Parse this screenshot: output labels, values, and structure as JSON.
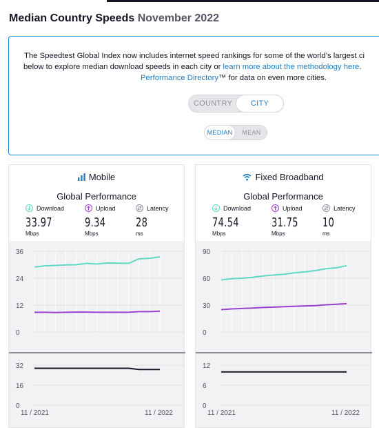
{
  "page": {
    "title": "Median Country Speeds",
    "month": "November 2022"
  },
  "info": {
    "line1": "The Speedtest Global Index now includes internet speed rankings for some of the world’s largest ci",
    "line2_pre": "below to explore median download speeds in each city or ",
    "line2_link": "learn more about the methodology here",
    "line2_post": ". ",
    "line3_link": "Performance Directory",
    "line3_post": "™ for data on even more cities."
  },
  "toggles": {
    "geo": {
      "options": [
        "COUNTRY",
        "CITY"
      ],
      "selected": "CITY"
    },
    "stat": {
      "options": [
        "MEDIAN",
        "MEAN"
      ],
      "selected": "MEDIAN"
    }
  },
  "colors": {
    "download": "#5fd9c3",
    "upload": "#9b3fcf",
    "latency": "#141526",
    "accent": "#1f7fc0",
    "border": "#1a8ed8"
  },
  "cards": [
    {
      "key": "mobile",
      "title": "Mobile",
      "icon": "signal-bars-icon",
      "subtitle": "Global Performance",
      "metrics": [
        {
          "label": "Download",
          "value": "33.97",
          "unit": "Mbps"
        },
        {
          "label": "Upload",
          "value": "9.34",
          "unit": "Mbps"
        },
        {
          "label": "Latency",
          "value": "28",
          "unit": "ms"
        }
      ],
      "chart_data": {
        "type": "line",
        "x": [
          "11/2021",
          "12/2021",
          "1/2022",
          "2/2022",
          "3/2022",
          "4/2022",
          "5/2022",
          "6/2022",
          "7/2022",
          "8/2022",
          "9/2022",
          "10/2022",
          "11/2022"
        ],
        "x_tick_labels": [
          "11 / 2021",
          "11 / 2022"
        ],
        "speed": {
          "ylim": [
            0,
            36
          ],
          "yticks": [
            "36",
            "24",
            "12",
            "0"
          ],
          "series": [
            {
              "values": [
                29.0,
                29.5,
                29.7,
                29.9,
                30.0,
                30.6,
                30.3,
                30.8,
                30.7,
                30.6,
                32.6,
                32.9,
                33.5
              ]
            },
            {
              "values": [
                8.8,
                8.8,
                8.7,
                8.8,
                8.9,
                8.9,
                8.8,
                8.8,
                8.8,
                8.8,
                9.1,
                9.1,
                9.3
              ]
            }
          ]
        },
        "latency": {
          "ylim": [
            0,
            32
          ],
          "yticks": [
            "32",
            "16",
            "0"
          ],
          "series": [
            {
              "values": [
                29.5,
                29.5,
                29.5,
                29.5,
                29.5,
                29.5,
                29.5,
                29.5,
                29.5,
                29.5,
                28.5,
                28.5,
                28.5
              ]
            }
          ]
        }
      }
    },
    {
      "key": "fixed",
      "title": "Fixed Broadband",
      "icon": "wifi-icon",
      "subtitle": "Global Performance",
      "metrics": [
        {
          "label": "Download",
          "value": "74.54",
          "unit": "Mbps"
        },
        {
          "label": "Upload",
          "value": "31.75",
          "unit": "Mbps"
        },
        {
          "label": "Latency",
          "value": "10",
          "unit": "ms"
        }
      ],
      "chart_data": {
        "type": "line",
        "x": [
          "11/2021",
          "12/2021",
          "1/2022",
          "2/2022",
          "3/2022",
          "4/2022",
          "5/2022",
          "6/2022",
          "7/2022",
          "8/2022",
          "9/2022",
          "10/2022",
          "11/2022"
        ],
        "x_tick_labels": [
          "11 / 2021",
          "11 / 2022"
        ],
        "speed": {
          "ylim": [
            0,
            90
          ],
          "yticks": [
            "90",
            "60",
            "30",
            "0"
          ],
          "series": [
            {
              "values": [
                58.0,
                59.5,
                60.0,
                61.0,
                62.5,
                63.5,
                64.5,
                66.0,
                67.0,
                68.5,
                70.5,
                71.5,
                74.0
              ]
            },
            {
              "values": [
                25.0,
                25.8,
                26.2,
                26.8,
                27.4,
                27.8,
                28.2,
                28.7,
                29.0,
                29.4,
                30.4,
                31.0,
                31.6
              ]
            }
          ]
        },
        "latency": {
          "ylim": [
            0,
            12
          ],
          "yticks": [
            "12",
            "6",
            "0"
          ],
          "series": [
            {
              "values": [
                10,
                10,
                10,
                10,
                10,
                10,
                10,
                10,
                10,
                10,
                10,
                10,
                10
              ]
            }
          ]
        }
      }
    }
  ]
}
